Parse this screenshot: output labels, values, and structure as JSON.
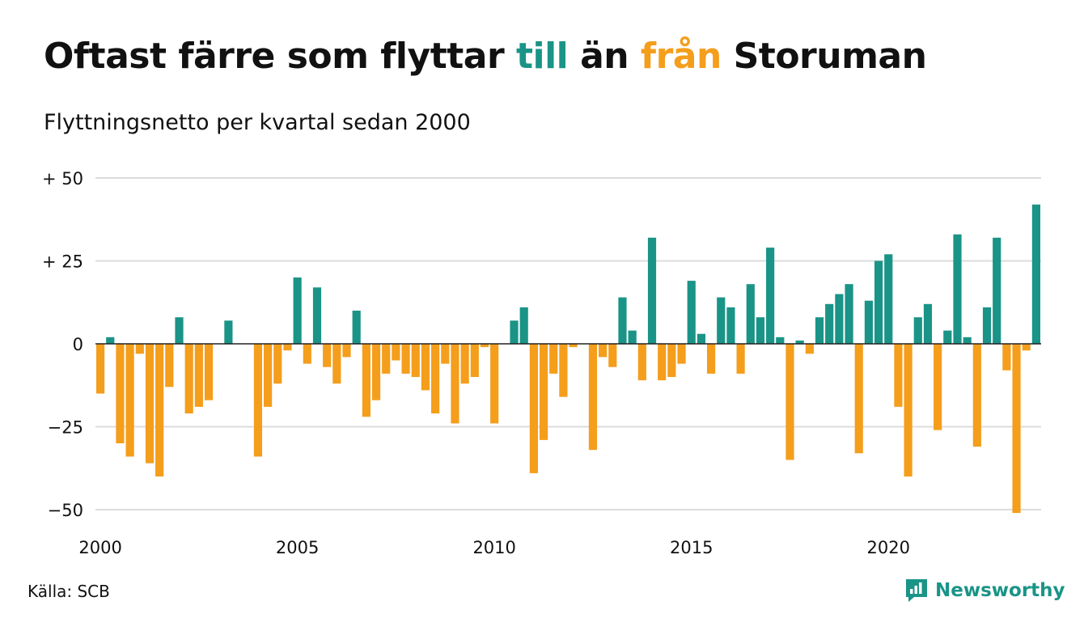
{
  "title": {
    "part1": "Oftast färre som flyttar ",
    "highlight_in": "till",
    "part2": " än ",
    "highlight_out": "från",
    "part3": " Storuman"
  },
  "subtitle": "Flyttningsnetto per kvartal sedan 2000",
  "source": "Källa: SCB",
  "brand": {
    "name": "Newsworthy",
    "icon": "newsworthy-logo-icon"
  },
  "colors": {
    "positive": "#1a9487",
    "negative": "#f49e1c",
    "grid": "#dcdcdc",
    "zero": "#222222",
    "text": "#111111"
  },
  "chart_data": {
    "type": "bar",
    "x_start_year": 2000,
    "ylim": [
      -50,
      50
    ],
    "yticks": [
      {
        "value": 50,
        "label": "+ 50"
      },
      {
        "value": 25,
        "label": "+ 25"
      },
      {
        "value": 0,
        "label": "0"
      },
      {
        "value": -25,
        "label": "−25"
      },
      {
        "value": -50,
        "label": "−50"
      }
    ],
    "xticks": [
      {
        "year": 2000,
        "label": "2000"
      },
      {
        "year": 2005,
        "label": "2005"
      },
      {
        "year": 2010,
        "label": "2010"
      },
      {
        "year": 2015,
        "label": "2015"
      },
      {
        "year": 2020,
        "label": "2020"
      }
    ],
    "grid": true,
    "values": [
      -15,
      2,
      -30,
      -34,
      -3,
      -36,
      -40,
      -13,
      8,
      -21,
      -19,
      -17,
      0,
      7,
      0,
      0,
      -34,
      -19,
      -12,
      -2,
      20,
      -6,
      17,
      -7,
      -12,
      -4,
      10,
      -22,
      -17,
      -9,
      -5,
      -9,
      -10,
      -14,
      -21,
      -6,
      -24,
      -12,
      -10,
      -1,
      -24,
      0,
      7,
      11,
      -39,
      -29,
      -9,
      -16,
      -1,
      0,
      -32,
      -4,
      -7,
      14,
      4,
      -11,
      32,
      -11,
      -10,
      -6,
      19,
      3,
      -9,
      14,
      11,
      -9,
      18,
      8,
      29,
      2,
      -35,
      1,
      -3,
      8,
      12,
      15,
      18,
      -33,
      13,
      25,
      27,
      -19,
      -40,
      8,
      12,
      -26,
      4,
      33,
      2,
      -31,
      11,
      32,
      -8,
      -51,
      -2,
      42
    ]
  }
}
